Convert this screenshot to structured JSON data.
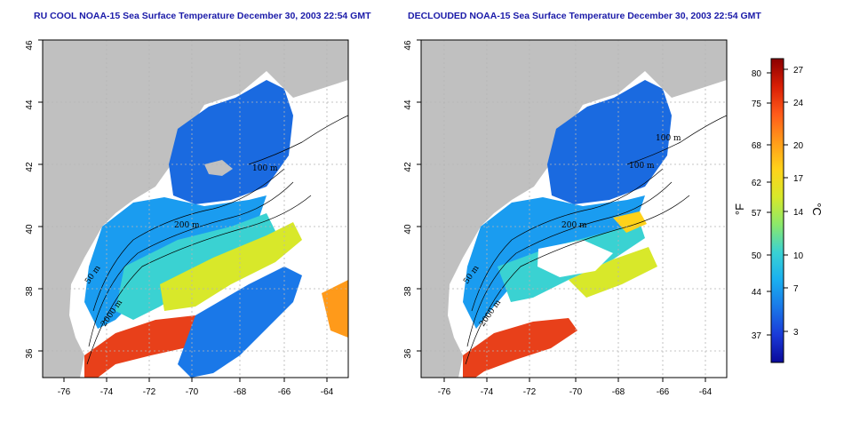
{
  "panels": [
    {
      "id": "left",
      "title": "RU COOL NOAA-15 Sea Surface Temperature December 30, 2003 22:54 GMT",
      "contour_labels": [
        "50 m",
        "200 m",
        "100 m",
        "2000 m"
      ]
    },
    {
      "id": "right",
      "title": "DECLOUDED NOAA-15 Sea Surface Temperature December 30, 2003 22:54 GMT",
      "contour_labels": [
        "50 m",
        "200 m",
        "100 m",
        "2000 m",
        "100 m"
      ]
    }
  ],
  "axes": {
    "lat_ticks": [
      "46",
      "44",
      "42",
      "40",
      "38",
      "36"
    ],
    "lon_ticks": [
      "-76",
      "-74",
      "-72",
      "-70",
      "-68",
      "-66",
      "-64"
    ]
  },
  "colorbar": {
    "fahrenheit_unit": "°F",
    "celsius_unit": "°C",
    "fahrenheit_ticks": [
      "80",
      "75",
      "68",
      "62",
      "57",
      "50",
      "44",
      "37"
    ],
    "celsius_ticks": [
      "27",
      "24",
      "20",
      "17",
      "14",
      "10",
      "7",
      "3"
    ],
    "colors": [
      "#8b0000",
      "#d81e05",
      "#ff5a1a",
      "#ff9a1a",
      "#ffd21a",
      "#d8e82a",
      "#8ce86a",
      "#3ad2d2",
      "#1ab0f0",
      "#1a78e8",
      "#1a3ad8",
      "#0a0a9a"
    ]
  },
  "colors": {
    "land": "#c0c0c0",
    "title": "#1a1aa8",
    "grid": "#b4b4b4"
  }
}
